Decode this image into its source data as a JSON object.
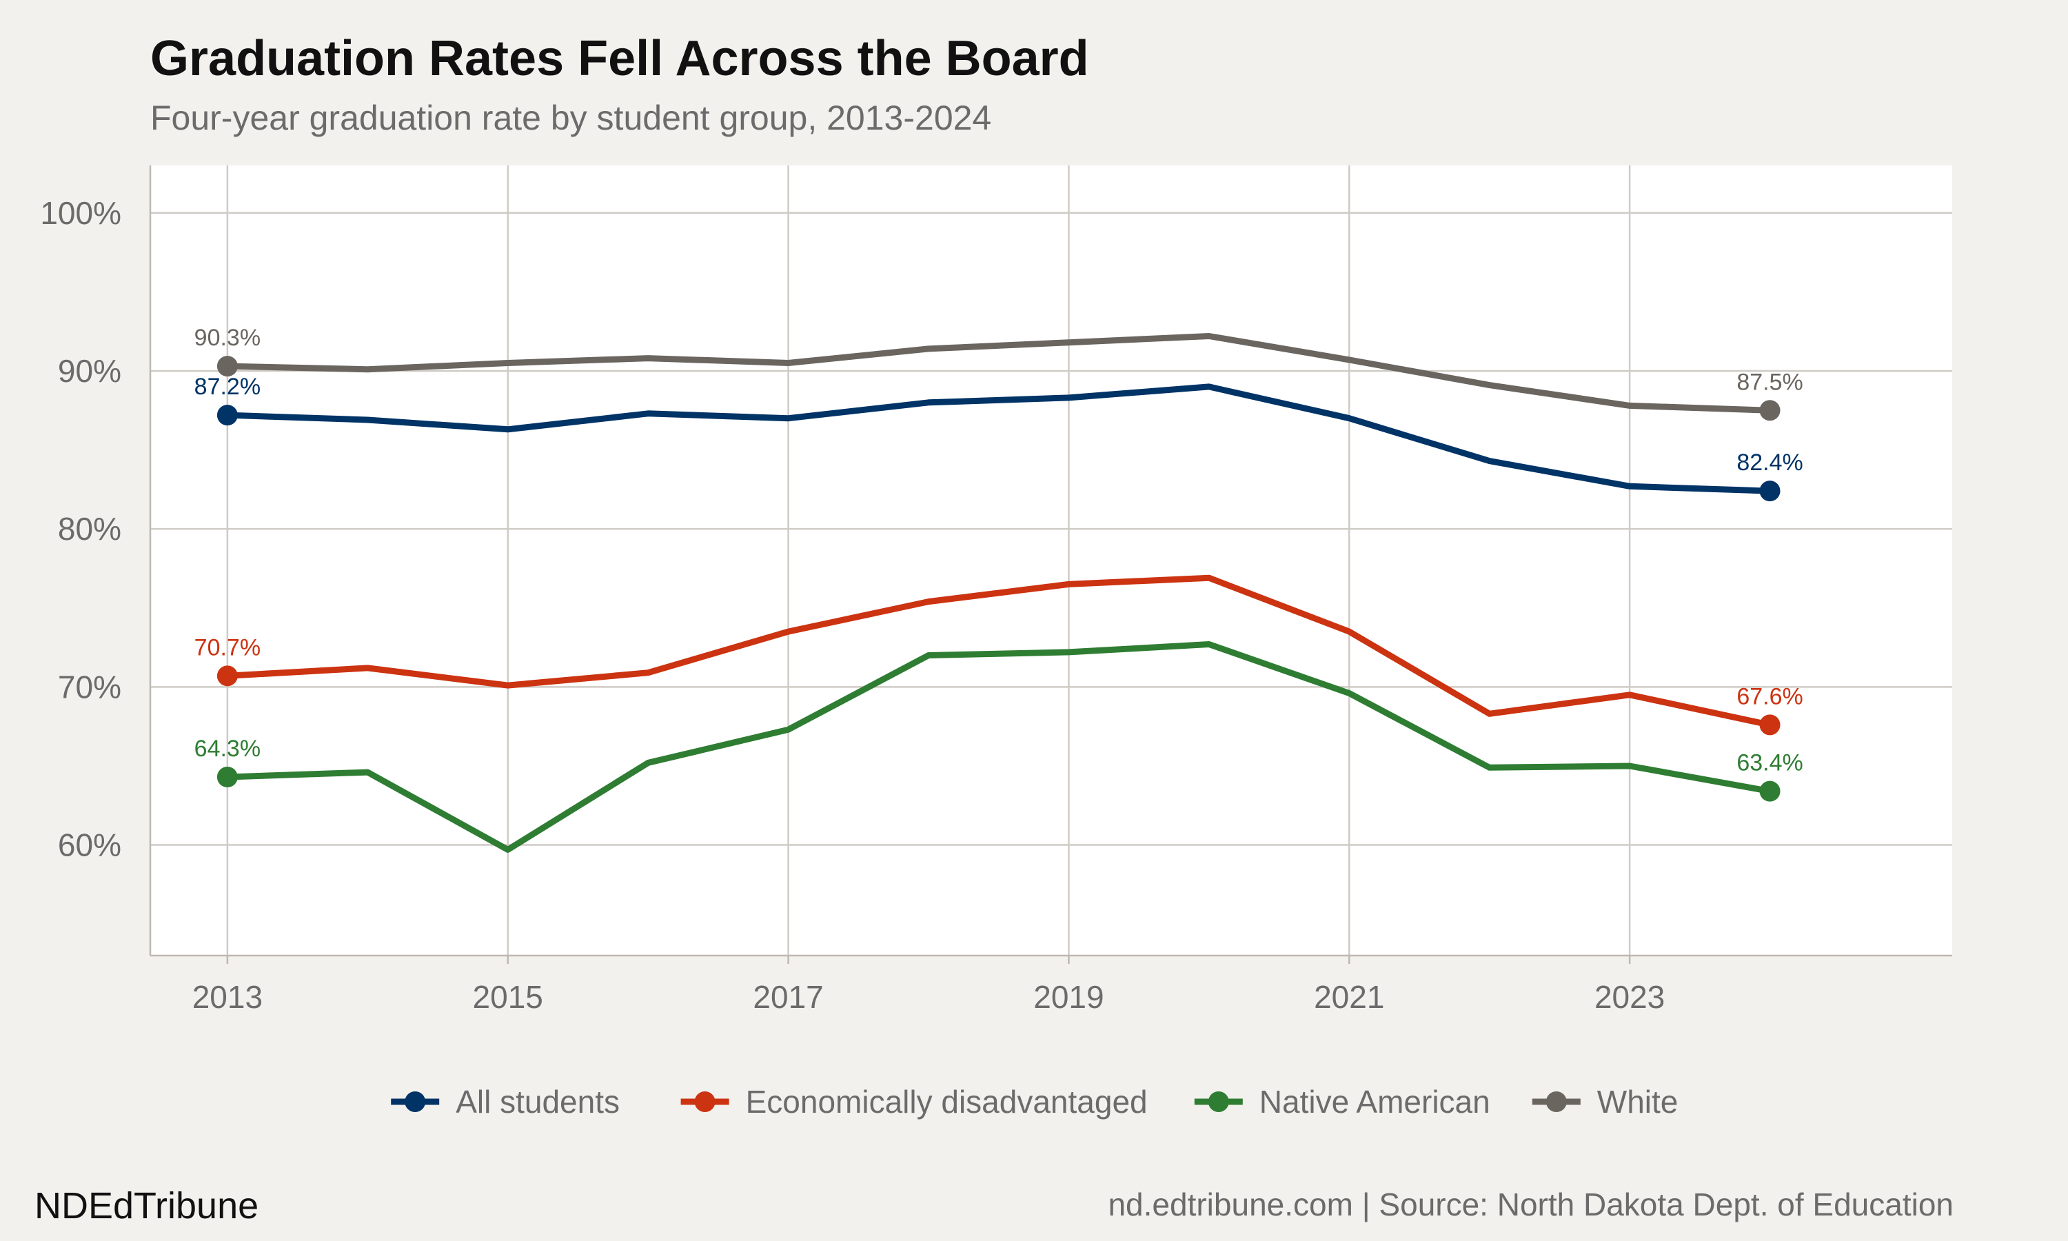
{
  "title": "Graduation Rates Fell Across the Board",
  "subtitle": "Four-year graduation rate by student group, 2013-2024",
  "footer": {
    "brand": "NDEdTribune",
    "source": "nd.edtribune.com | Source: North Dakota Dept. of Education"
  },
  "chart_data": {
    "type": "line",
    "x": [
      2013,
      2014,
      2015,
      2016,
      2017,
      2018,
      2019,
      2020,
      2021,
      2022,
      2023,
      2024
    ],
    "x_ticks": [
      2013,
      2015,
      2017,
      2019,
      2021,
      2023
    ],
    "xlim": [
      2012.45,
      2025.3
    ],
    "ylim": [
      53,
      103
    ],
    "y_ticks": [
      60,
      70,
      80,
      90,
      100
    ],
    "y_tick_labels": [
      "60%",
      "70%",
      "80%",
      "90%",
      "100%"
    ],
    "grid": true,
    "legend_position": "bottom",
    "series": [
      {
        "name": "All students",
        "color": "#003366",
        "values": [
          87.2,
          86.9,
          86.3,
          87.3,
          87.0,
          88.0,
          88.3,
          89.0,
          87.0,
          84.3,
          82.7,
          82.4
        ],
        "start_label": "87.2%",
        "end_label": "82.4%"
      },
      {
        "name": "Economically disadvantaged",
        "color": "#cc3311",
        "values": [
          70.7,
          71.2,
          70.1,
          70.9,
          73.5,
          75.4,
          76.5,
          76.9,
          73.5,
          68.3,
          69.5,
          67.6
        ],
        "start_label": "70.7%",
        "end_label": "67.6%"
      },
      {
        "name": "Native American",
        "color": "#2e7d32",
        "values": [
          64.3,
          64.6,
          59.7,
          65.2,
          67.3,
          72.0,
          72.2,
          72.7,
          69.6,
          64.9,
          65.0,
          63.4
        ],
        "start_label": "64.3%",
        "end_label": "63.4%"
      },
      {
        "name": "White",
        "color": "#6b6560",
        "values": [
          90.3,
          90.1,
          90.5,
          90.8,
          90.5,
          91.4,
          91.8,
          92.2,
          90.7,
          89.1,
          87.8,
          87.5
        ],
        "start_label": "90.3%",
        "end_label": "87.5%"
      }
    ]
  }
}
